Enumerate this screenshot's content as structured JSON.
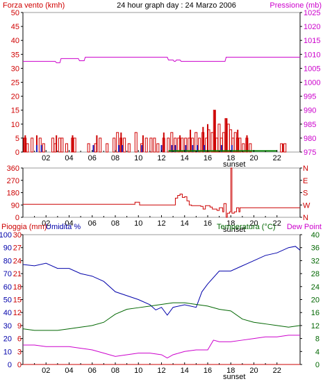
{
  "colors": {
    "wind": "#d00000",
    "gust": "#cc0000",
    "pressure": "#cc00cc",
    "direction": "#cc0000",
    "humidity": "#0000aa",
    "temperature": "#006600",
    "dewpoint": "#cc00cc",
    "rain": "#cc0000",
    "axis_dark": "#000000",
    "axis_grey": "#9a9a9a",
    "low_wind_blue": "#2020c0",
    "low_wind_green": "#008000"
  },
  "header": {
    "left_label": "Forza vento (kmh)",
    "center_title": "24 hour graph day : 24 Marzo 2006",
    "right_label": "Pressione (mb)"
  },
  "x_ticks": [
    "02",
    "04",
    "06",
    "08",
    "10",
    "12",
    "14",
    "16",
    "18",
    "20",
    "22"
  ],
  "sunset_label": "sunset",
  "chart_data": [
    {
      "type": "bar",
      "id": "wind",
      "ylabel": "Forza vento (kmh)",
      "ylim": [
        0,
        50
      ],
      "yticks": [
        "0",
        "5",
        "10",
        "15",
        "20",
        "25",
        "30",
        "35",
        "40",
        "45",
        "50"
      ],
      "series": [
        {
          "name": "Forza vento (kmh)",
          "x": [
            0.05,
            0.1,
            0.3,
            0.7,
            1.4,
            1.7,
            2.5,
            2.7,
            3.1,
            3.3,
            3.7,
            4.2,
            4.4,
            5.6,
            6.2,
            6.6,
            7.2,
            7.8,
            8.1,
            8.4,
            8.7,
            9.1,
            9.7,
            10.2,
            10.6,
            11.0,
            11.3,
            11.6,
            12.1,
            12.5,
            12.8,
            13.1,
            13.4,
            13.7,
            14.0,
            14.3,
            14.6,
            14.9,
            15.2,
            15.5,
            15.8,
            16.0,
            16.3,
            16.5,
            16.7,
            16.9,
            17.1,
            17.3,
            17.5,
            17.7,
            17.9,
            18.1,
            18.3,
            18.5,
            18.7,
            19.0,
            19.3,
            19.6,
            22.3,
            22.6
          ],
          "values": [
            5,
            5,
            3,
            5,
            5,
            3,
            5,
            3,
            5,
            5,
            3,
            5,
            5,
            3,
            3,
            5,
            3,
            5,
            7,
            5,
            5,
            3,
            7,
            3,
            5,
            5,
            5,
            3,
            5,
            5,
            7,
            5,
            5,
            5,
            5,
            5,
            5,
            7,
            5,
            7,
            5,
            8,
            7,
            15,
            5,
            10,
            5,
            7,
            12,
            10,
            8,
            5,
            7,
            5,
            5,
            3,
            5,
            3,
            3,
            3
          ]
        },
        {
          "name": "Gust",
          "x": [
            0.2,
            1.2,
            2.9,
            4.3,
            6.4,
            8.5,
            10.4,
            12.2,
            13.6,
            14.5,
            15.6,
            16.0,
            16.6,
            17.6,
            18.6,
            19.4,
            22.5
          ],
          "values": [
            6,
            6,
            6,
            6,
            6,
            7,
            6,
            7,
            6,
            8,
            9,
            10,
            15,
            12,
            8,
            6,
            3
          ]
        }
      ]
    },
    {
      "type": "line",
      "id": "pressure",
      "ylabel": "Pressione (mb)",
      "ylim": [
        975,
        1025
      ],
      "yticks": [
        "975",
        "980",
        "985",
        "990",
        "995",
        "1000",
        "1005",
        "1010",
        "1015",
        "1020",
        "1025"
      ],
      "series": [
        {
          "name": "Pressione (mb)",
          "x": [
            0,
            2.8,
            2.9,
            3.2,
            3.3,
            4.8,
            4.9,
            5.3,
            5.4,
            12.5,
            12.6,
            13.0,
            13.1,
            13.2,
            13.3,
            13.6,
            13.7,
            17.5,
            17.6,
            24
          ],
          "values": [
            1007.5,
            1007.5,
            1007,
            1007,
            1008.5,
            1008.5,
            1007.7,
            1007.7,
            1009,
            1009,
            1008,
            1008,
            1007.5,
            1007.5,
            1008,
            1008,
            1007.5,
            1007.5,
            1009,
            1009
          ]
        }
      ]
    },
    {
      "type": "line",
      "id": "wind_direction",
      "ylim": [
        0,
        360
      ],
      "yticks": [
        "0",
        "90",
        "180",
        "270",
        "360"
      ],
      "right_labels": [
        "N",
        "W",
        "S",
        "E",
        "N"
      ],
      "series": [
        {
          "name": "direction",
          "x": [
            0,
            9.6,
            9.7,
            10.0,
            10.1,
            13.1,
            13.2,
            13.4,
            13.6,
            13.8,
            14.0,
            14.2,
            14.4,
            14.6,
            15.4,
            15.6,
            15.8,
            16.2,
            16.4,
            16.8,
            17.0,
            17.3,
            17.4,
            17.6,
            17.7,
            17.9,
            18.0,
            18.1,
            18.3,
            18.5,
            18.7,
            18.8,
            24
          ],
          "values": [
            95,
            95,
            110,
            110,
            90,
            90,
            140,
            160,
            170,
            145,
            150,
            120,
            90,
            85,
            80,
            60,
            85,
            75,
            60,
            50,
            70,
            40,
            100,
            0,
            30,
            40,
            360,
            30,
            40,
            70,
            40,
            70,
            70
          ]
        }
      ]
    },
    {
      "type": "line",
      "id": "humidity_temp",
      "left_labels": {
        "rain": "Pioggia (mm)",
        "humidity": "Umidita %"
      },
      "right_labels": {
        "temperature": "Temperatura (°C)",
        "dewpoint": "Dew Point"
      },
      "ylim_humidity": [
        0,
        100
      ],
      "ylim_rain": [
        0,
        30
      ],
      "ylim_temp": [
        0,
        40
      ],
      "yticks_humidity": [
        "0",
        "10",
        "20",
        "30",
        "40",
        "50",
        "60",
        "70",
        "80",
        "90",
        "100"
      ],
      "yticks_rain": [
        "0",
        "3",
        "6",
        "9",
        "12",
        "15",
        "18",
        "21",
        "24",
        "27",
        "30"
      ],
      "yticks_temp": [
        "0",
        "4",
        "8",
        "12",
        "16",
        "20",
        "24",
        "28",
        "32",
        "36",
        "40"
      ],
      "series": [
        {
          "name": "Umidita %",
          "axis": "humidity",
          "x": [
            0,
            1,
            2,
            3,
            4,
            5,
            6,
            7,
            8,
            9,
            10,
            11,
            11.5,
            12,
            12.5,
            13,
            14,
            15,
            15.5,
            16,
            17,
            18,
            19,
            20,
            21,
            22,
            23,
            23.6,
            24
          ],
          "values": [
            77,
            76,
            78,
            74,
            74,
            70,
            68,
            64,
            56,
            53,
            50,
            46,
            42,
            44,
            38,
            44,
            46,
            44,
            56,
            62,
            72,
            72,
            76,
            80,
            84,
            86,
            90,
            91,
            88
          ]
        },
        {
          "name": "Temperatura (°C)",
          "axis": "temp",
          "x": [
            0,
            1,
            2,
            3,
            4,
            5,
            6,
            7,
            8,
            9,
            10,
            11,
            12,
            13,
            14,
            15,
            16,
            17,
            18,
            19,
            20,
            21,
            22,
            23,
            24
          ],
          "values": [
            11,
            10.5,
            10.5,
            10.5,
            11,
            11.5,
            12,
            13,
            15.5,
            17,
            17.5,
            18,
            18.5,
            19,
            19,
            18.5,
            18,
            17,
            16.5,
            14,
            13,
            12.5,
            12,
            11.5,
            12
          ]
        },
        {
          "name": "Dew Point",
          "axis": "temp",
          "x": [
            0,
            1,
            2,
            3,
            4,
            5,
            6,
            7,
            8,
            9,
            10,
            11,
            12,
            12.5,
            13,
            14,
            15,
            16,
            16.5,
            17,
            18,
            19,
            20,
            21,
            22,
            23,
            24
          ],
          "values": [
            6,
            6,
            5.5,
            5.5,
            5.5,
            5,
            4.5,
            3.5,
            2.5,
            3,
            3.5,
            3.5,
            3,
            2,
            3,
            4,
            4.5,
            4.5,
            7.5,
            7,
            7,
            7.5,
            8,
            8.5,
            8.5,
            9,
            9
          ]
        },
        {
          "name": "Pioggia (mm)",
          "axis": "rain",
          "x": [
            0,
            24
          ],
          "values": [
            0,
            0
          ]
        }
      ]
    }
  ]
}
